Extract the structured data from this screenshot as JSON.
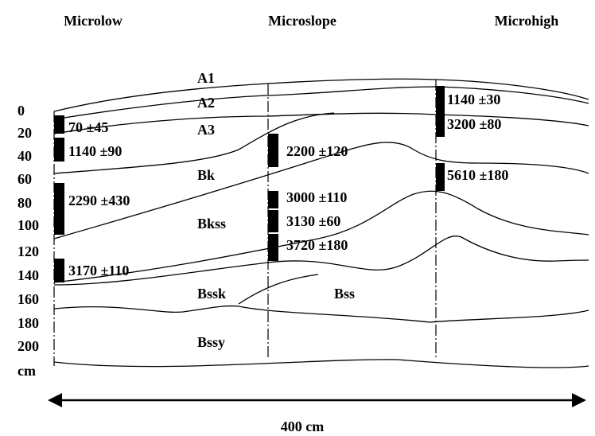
{
  "columns": [
    "Microlow",
    "Microslope",
    "Microhigh"
  ],
  "depth_labels": [
    "0",
    "20",
    "40",
    "60",
    "80",
    "100",
    "120",
    "140",
    "160",
    "180",
    "200",
    "cm"
  ],
  "horizons": [
    "A1",
    "A2",
    "A3",
    "Bk",
    "Bkss",
    "Bssk",
    "Bss",
    "Bssy"
  ],
  "dates": {
    "microlow": [
      "70 ±45",
      "1140 ±90",
      "2290 ±430",
      "3170 ±110"
    ],
    "microslope": [
      "2200 ±120",
      "3000 ±110",
      "3130 ±60",
      "3720 ±180"
    ],
    "microhigh": [
      "1140 ±30",
      "3200 ±80",
      "5610 ±180"
    ]
  },
  "scale_label": "400 cm"
}
